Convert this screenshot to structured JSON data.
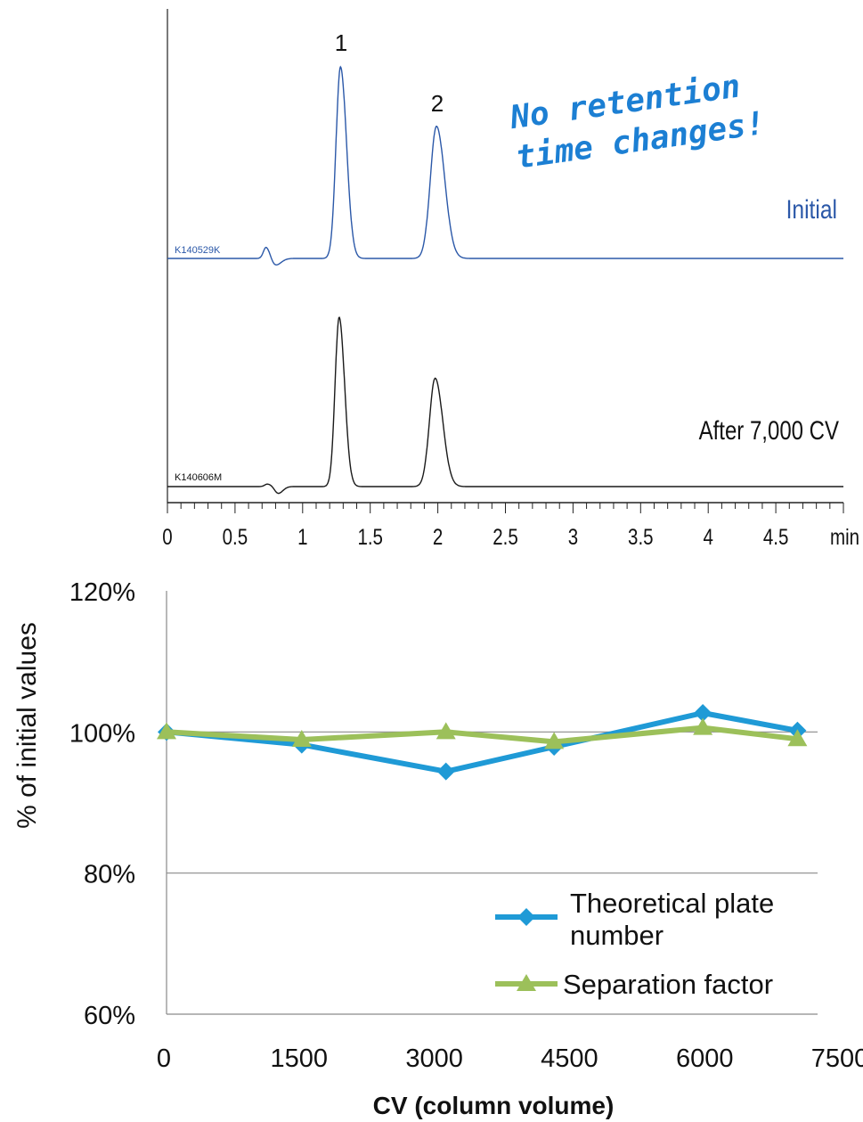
{
  "chart_data": [
    {
      "type": "line",
      "chart": "chromatogram",
      "xlabel": "min",
      "xlim": [
        0,
        5
      ],
      "x_ticks": [
        "0",
        "0.5",
        "1",
        "1.5",
        "2",
        "2.5",
        "3",
        "3.5",
        "4",
        "4.5"
      ],
      "peak_labels": [
        {
          "text": "1",
          "x": 1.28
        },
        {
          "text": "2",
          "x": 1.99
        }
      ],
      "annotation": [
        "No retention",
        "time changes!"
      ],
      "traces": [
        {
          "name": "Initial",
          "file_label": "K140529K",
          "color": "#2b58a8",
          "peaks": [
            {
              "x": 0.73,
              "height": 0.06,
              "width": 0.02
            },
            {
              "x": 0.8,
              "height": -0.035,
              "width": 0.03
            },
            {
              "x": 1.28,
              "height": 1.0,
              "width": 0.033
            },
            {
              "x": 1.99,
              "height": 0.69,
              "width": 0.045
            }
          ]
        },
        {
          "name": "After 7,000 CV",
          "file_label": "K140606M",
          "color": "#1a1a1a",
          "peaks": [
            {
              "x": 0.74,
              "height": 0.015,
              "width": 0.02
            },
            {
              "x": 0.82,
              "height": -0.04,
              "width": 0.025
            },
            {
              "x": 1.27,
              "height": 1.0,
              "width": 0.03
            },
            {
              "x": 1.98,
              "height": 0.64,
              "width": 0.042
            }
          ]
        }
      ]
    },
    {
      "type": "line",
      "chart": "stability",
      "xlabel": "CV (column volume)",
      "ylabel": "% of initial values",
      "xlim": [
        0,
        7500
      ],
      "ylim": [
        60,
        120
      ],
      "x_ticks": [
        "0",
        "1500",
        "3000",
        "4500",
        "6000",
        "7500"
      ],
      "y_ticks": [
        "60%",
        "80%",
        "100%",
        "120%"
      ],
      "gridlines_y": [
        80,
        100
      ],
      "legend_position": "bottom-right",
      "series": [
        {
          "name": "Theoretical plate number",
          "name_lines": [
            "Theoretical plate",
            "number"
          ],
          "marker": "diamond",
          "color": "#1f9ad6",
          "x": [
            0,
            1500,
            3100,
            4300,
            5950,
            7000
          ],
          "values": [
            100.0,
            98.2,
            94.4,
            97.9,
            102.7,
            100.2
          ]
        },
        {
          "name": "Separation factor",
          "marker": "triangle",
          "color": "#9cc05a",
          "x": [
            0,
            1500,
            3100,
            4300,
            5950,
            7000
          ],
          "values": [
            100.0,
            98.9,
            100.0,
            98.6,
            100.6,
            99.0
          ]
        }
      ]
    }
  ]
}
